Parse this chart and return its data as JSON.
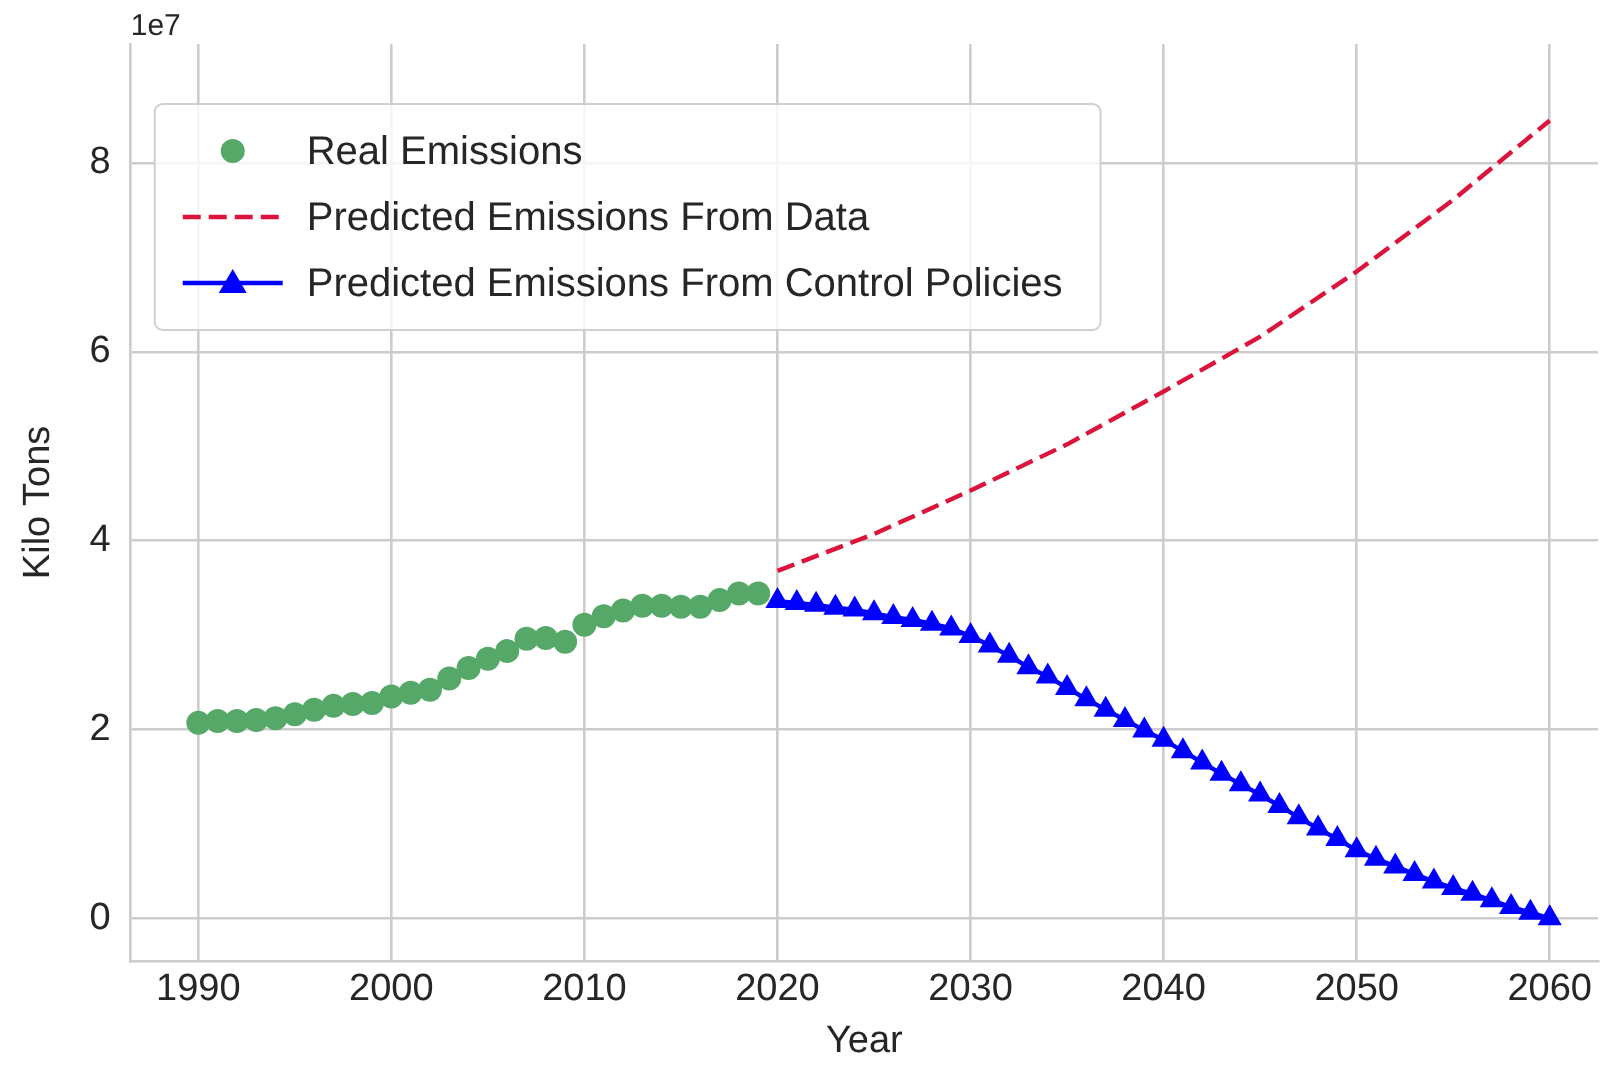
{
  "chart_data": {
    "type": "line",
    "xlabel": "Year",
    "ylabel": "Kilo Tons",
    "annotations": [
      "1e7"
    ],
    "xlim": [
      1986.5,
      2062.5
    ],
    "xticks": [
      1990,
      2000,
      2010,
      2020,
      2030,
      2040,
      2050,
      2060
    ],
    "ylim": [
      -0.45,
      9.26
    ],
    "yticks": [
      0,
      2,
      4,
      6,
      8
    ],
    "grid": true,
    "legend": "top left",
    "series": [
      {
        "name": "Real Emissions",
        "type": "scatter",
        "marker": "circle",
        "color": "#55a868",
        "x": [
          1990,
          1991,
          1992,
          1993,
          1994,
          1995,
          1996,
          1997,
          1998,
          1999,
          2000,
          2001,
          2002,
          2003,
          2004,
          2005,
          2006,
          2007,
          2008,
          2009,
          2010,
          2011,
          2012,
          2013,
          2014,
          2015,
          2016,
          2017,
          2018,
          2019
        ],
        "values": [
          2.07,
          2.09,
          2.09,
          2.1,
          2.12,
          2.16,
          2.21,
          2.25,
          2.27,
          2.28,
          2.35,
          2.39,
          2.42,
          2.54,
          2.65,
          2.75,
          2.83,
          2.96,
          2.97,
          2.93,
          3.11,
          3.2,
          3.26,
          3.31,
          3.31,
          3.3,
          3.3,
          3.37,
          3.44,
          3.44
        ]
      },
      {
        "name": "Predicted Emissions From Data",
        "type": "line",
        "marker": "none",
        "line_style": "dashed",
        "color": "#dc143c",
        "x": [
          2020,
          2025,
          2030,
          2035,
          2040,
          2045,
          2050,
          2055,
          2060
        ],
        "values": [
          3.68,
          4.07,
          4.53,
          5.02,
          5.58,
          6.16,
          6.85,
          7.61,
          8.45
        ]
      },
      {
        "name": "Predicted Emissions From Control Policies",
        "type": "line",
        "marker": "triangle",
        "line_style": "solid",
        "color": "#0000ff",
        "x": [
          2020,
          2021,
          2022,
          2023,
          2024,
          2025,
          2026,
          2027,
          2028,
          2029,
          2030,
          2031,
          2032,
          2033,
          2034,
          2035,
          2036,
          2037,
          2038,
          2039,
          2040,
          2041,
          2042,
          2043,
          2044,
          2045,
          2046,
          2047,
          2048,
          2049,
          2050,
          2051,
          2052,
          2053,
          2054,
          2055,
          2056,
          2057,
          2058,
          2059,
          2060
        ],
        "values": [
          3.36,
          3.34,
          3.32,
          3.29,
          3.27,
          3.23,
          3.19,
          3.16,
          3.12,
          3.07,
          2.99,
          2.89,
          2.78,
          2.66,
          2.56,
          2.44,
          2.32,
          2.21,
          2.1,
          1.99,
          1.89,
          1.77,
          1.65,
          1.53,
          1.42,
          1.31,
          1.19,
          1.07,
          0.95,
          0.84,
          0.72,
          0.63,
          0.55,
          0.47,
          0.39,
          0.32,
          0.26,
          0.19,
          0.12,
          0.06,
          0.0
        ]
      }
    ]
  }
}
